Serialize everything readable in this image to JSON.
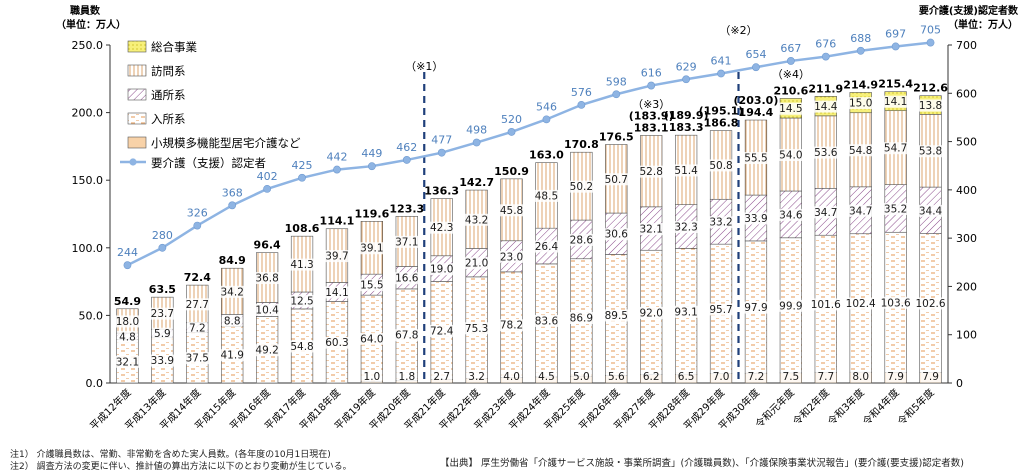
{
  "chart_data": {
    "type": "bar",
    "stacked": true,
    "left_axis": {
      "title": "職員数",
      "unit": "（単位：万人）",
      "ylim": [
        0,
        250
      ],
      "ticks": [
        "0.0",
        "50.0",
        "100.0",
        "150.0",
        "200.0",
        "250.0"
      ]
    },
    "right_axis": {
      "title": "要介護(支援)認定者数",
      "unit": "（単位：万人）",
      "ylim": [
        0,
        700
      ],
      "ticks": [
        "0",
        "100",
        "200",
        "300",
        "400",
        "500",
        "600",
        "700"
      ]
    },
    "categories": [
      "平成12年度",
      "平成13年度",
      "平成14年度",
      "平成15年度",
      "平成16年度",
      "平成17年度",
      "平成18年度",
      "平成19年度",
      "平成20年度",
      "平成21年度",
      "平成22年度",
      "平成23年度",
      "平成24年度",
      "平成25年度",
      "平成26年度",
      "平成27年度",
      "平成28年度",
      "平成29年度",
      "平成30年度",
      "令和元年度",
      "令和2年度",
      "令和3年度",
      "令和4年度",
      "令和5年度"
    ],
    "series": [
      {
        "name": "小規模多機能型居宅介護など",
        "color": "#f5c08a",
        "values": [
          null,
          null,
          null,
          null,
          null,
          null,
          null,
          1.0,
          1.8,
          2.7,
          3.2,
          4.0,
          4.5,
          5.0,
          5.6,
          6.2,
          6.5,
          7.0,
          7.2,
          7.5,
          7.7,
          8.0,
          7.9,
          7.9
        ]
      },
      {
        "name": "入所系",
        "color": "#e69a55",
        "values": [
          32.1,
          33.9,
          37.5,
          41.9,
          49.2,
          54.8,
          60.3,
          64.0,
          67.8,
          72.4,
          75.3,
          78.2,
          83.6,
          86.9,
          89.5,
          92.0,
          93.1,
          95.7,
          97.9,
          99.9,
          101.6,
          102.4,
          103.6,
          102.6
        ]
      },
      {
        "name": "通所系",
        "color": "#8a4a8a",
        "values": [
          4.8,
          5.9,
          7.2,
          8.8,
          10.4,
          12.5,
          14.1,
          15.5,
          16.6,
          19.0,
          21.0,
          23.0,
          26.4,
          28.6,
          30.6,
          32.1,
          32.3,
          33.2,
          33.9,
          34.6,
          34.7,
          34.7,
          35.2,
          34.4
        ]
      },
      {
        "name": "訪問系",
        "color": "#d4904a",
        "values": [
          18.0,
          23.7,
          27.7,
          34.2,
          36.8,
          41.3,
          39.7,
          39.1,
          37.1,
          42.3,
          43.2,
          45.8,
          48.5,
          50.2,
          50.7,
          52.8,
          51.4,
          50.8,
          55.5,
          54.0,
          53.6,
          54.8,
          54.7,
          53.8
        ]
      },
      {
        "name": "総合事業",
        "color": "#f2e84a",
        "values": [
          null,
          null,
          null,
          null,
          null,
          null,
          null,
          null,
          null,
          null,
          null,
          null,
          null,
          null,
          null,
          null,
          null,
          null,
          null,
          14.5,
          14.4,
          15.0,
          14.1,
          13.8
        ]
      }
    ],
    "totals": [
      "54.9",
      "63.5",
      "72.4",
      "84.9",
      "96.4",
      "108.6",
      "114.1",
      "119.6",
      "123.3",
      "136.3",
      "142.7",
      "150.9",
      "163.0",
      "170.8",
      "176.5",
      "183.1",
      "183.3",
      "186.8",
      "194.4",
      "210.6",
      "211.9",
      "214.9",
      "215.4",
      "212.6"
    ],
    "alt_totals": [
      {
        "index": 15,
        "label": "(183.9)"
      },
      {
        "index": 16,
        "label": "(189.9)"
      },
      {
        "index": 17,
        "label": "(195.1)"
      },
      {
        "index": 18,
        "label": "(203.0)"
      }
    ],
    "line": {
      "name": "要介護（支援）認定者",
      "axis": "right",
      "color": "#8eb4e3",
      "values": [
        244,
        280,
        326,
        368,
        402,
        425,
        442,
        449,
        462,
        477,
        498,
        520,
        546,
        576,
        598,
        616,
        629,
        641,
        654,
        667,
        676,
        688,
        697,
        705
      ]
    },
    "markers": [
      {
        "label": "（※1）",
        "after_index": 8
      },
      {
        "label": "（※2）",
        "after_index": 17
      },
      {
        "label": "（※3）",
        "at_index": 15
      },
      {
        "label": "（※4）",
        "at_index": 19
      }
    ],
    "legend_position": "top-left"
  },
  "notes": [
    "注1）  介護職員数は、常勤、非常勤を含めた実人員数。(各年度の10月1日現在)",
    "注2）  調査方法の変更に伴い、推計値の算出方法に以下のとおり変動が生じている。"
  ],
  "source": "【出典】 厚生労働省「介護サービス施設・事業所調査」(介護職員数)、「介護保険事業状況報告」(要介護(要支援)認定者数)"
}
